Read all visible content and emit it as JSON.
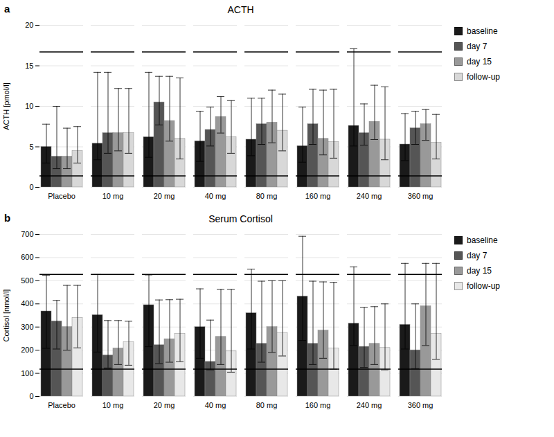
{
  "chart_data": [
    {
      "type": "bar",
      "panel_label": "a",
      "title": "ACTH",
      "ylabel": "ACTH [pmol/l]",
      "ylim": [
        0,
        20
      ],
      "yticks": [
        0,
        5,
        10,
        15,
        20
      ],
      "grid": true,
      "legend": "right",
      "hlines": [
        16.7,
        1.4
      ],
      "categories": [
        "Placebo",
        "10 mg",
        "20 mg",
        "40 mg",
        "80 mg",
        "160 mg",
        "240 mg",
        "360 mg"
      ],
      "series": [
        {
          "name": "baseline",
          "color": "#1a1a1a",
          "values": [
            5.0,
            5.4,
            6.2,
            5.7,
            5.9,
            5.1,
            7.6,
            5.3
          ],
          "errors_upper": [
            2.8,
            8.8,
            8.0,
            3.7,
            5.1,
            4.8,
            9.5,
            3.8
          ],
          "errors_lower": [
            2.0,
            2.0,
            2.5,
            2.5,
            2.0,
            2.0,
            2.5,
            2.0
          ]
        },
        {
          "name": "day 7",
          "color": "#555555",
          "values": [
            3.8,
            6.7,
            10.5,
            7.1,
            7.8,
            7.8,
            6.7,
            7.3
          ],
          "errors_upper": [
            6.2,
            7.5,
            3.2,
            2.8,
            3.2,
            4.3,
            3.6,
            2.1
          ],
          "errors_lower": [
            1.5,
            2.5,
            2.8,
            2.0,
            2.5,
            2.5,
            1.5,
            2.0
          ]
        },
        {
          "name": "day 15",
          "color": "#999999",
          "values": [
            3.8,
            6.7,
            8.2,
            8.7,
            8.0,
            6.0,
            8.1,
            7.8
          ],
          "errors_upper": [
            3.5,
            5.5,
            5.5,
            2.5,
            4.0,
            6.0,
            4.5,
            1.8
          ],
          "errors_lower": [
            1.5,
            2.2,
            2.5,
            2.0,
            2.5,
            2.0,
            2.2,
            2.0
          ]
        },
        {
          "name": "follow-up",
          "color": "#d8d8d8",
          "values": [
            4.5,
            6.7,
            6.0,
            6.2,
            7.0,
            5.6,
            5.9,
            5.5
          ],
          "errors_upper": [
            3.0,
            5.5,
            7.5,
            4.5,
            4.5,
            6.5,
            6.5,
            3.5
          ],
          "errors_lower": [
            1.5,
            2.5,
            2.5,
            2.0,
            2.5,
            2.0,
            2.5,
            2.0
          ]
        }
      ]
    },
    {
      "type": "bar",
      "panel_label": "b",
      "title": "Serum Cortisol",
      "ylabel": "Cortisol [nmol/l]",
      "ylim": [
        0,
        700
      ],
      "yticks": [
        0,
        100,
        200,
        300,
        400,
        500,
        600,
        700
      ],
      "grid": true,
      "legend": "right",
      "hlines": [
        527,
        118
      ],
      "categories": [
        "Placebo",
        "10 mg",
        "20 mg",
        "40 mg",
        "80 mg",
        "160 mg",
        "240 mg",
        "360 mg"
      ],
      "series": [
        {
          "name": "baseline",
          "color": "#1a1a1a",
          "values": [
            368,
            352,
            395,
            300,
            360,
            432,
            315,
            310
          ],
          "errors_upper": [
            155,
            175,
            130,
            165,
            190,
            260,
            245,
            265
          ],
          "errors_lower": [
            160,
            160,
            180,
            135,
            155,
            190,
            95,
            105
          ]
        },
        {
          "name": "day 7",
          "color": "#555555",
          "values": [
            325,
            178,
            222,
            150,
            228,
            228,
            215,
            200
          ],
          "errors_upper": [
            90,
            150,
            195,
            180,
            270,
            270,
            170,
            200
          ],
          "errors_lower": [
            120,
            55,
            80,
            35,
            80,
            90,
            90,
            80
          ]
        },
        {
          "name": "day 15",
          "color": "#999999",
          "values": [
            300,
            208,
            248,
            258,
            300,
            285,
            228,
            390
          ],
          "errors_upper": [
            180,
            120,
            170,
            205,
            200,
            210,
            160,
            185
          ],
          "errors_lower": [
            100,
            70,
            100,
            120,
            110,
            120,
            90,
            170
          ]
        },
        {
          "name": "follow-up",
          "color": "#e8e8e8",
          "values": [
            340,
            235,
            270,
            195,
            275,
            208,
            210,
            270
          ],
          "errors_upper": [
            140,
            90,
            150,
            268,
            225,
            285,
            190,
            305
          ],
          "errors_lower": [
            130,
            100,
            120,
            90,
            100,
            90,
            95,
            110
          ]
        }
      ]
    }
  ]
}
